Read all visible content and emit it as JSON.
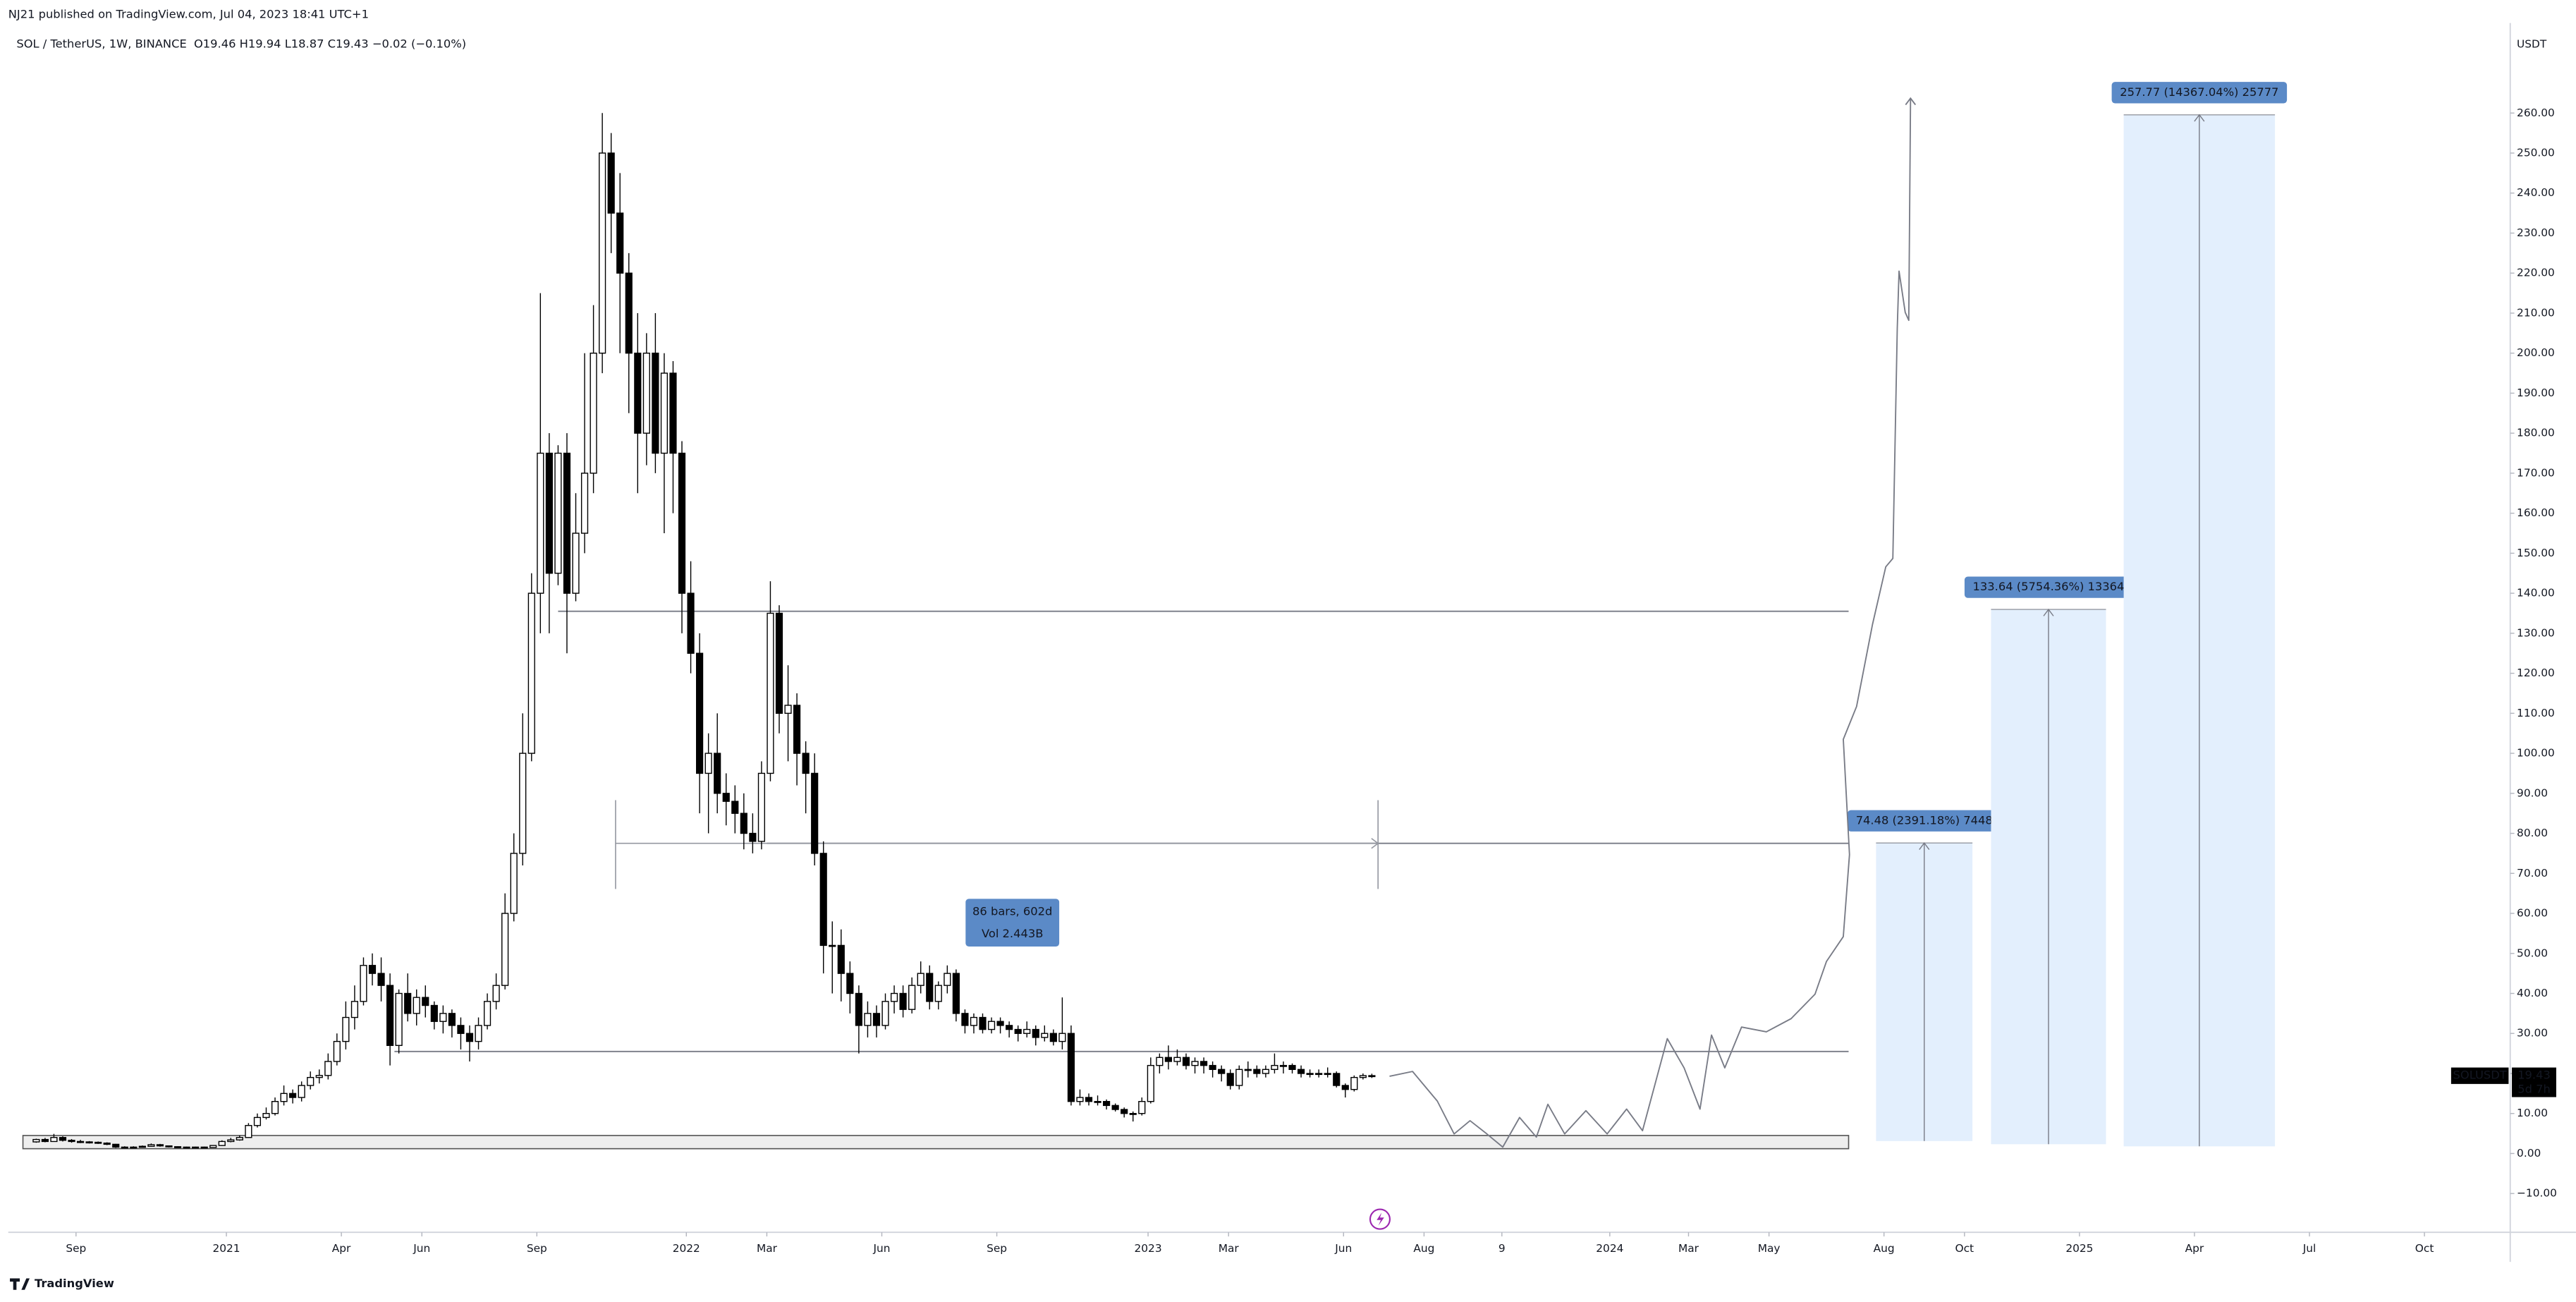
{
  "chart_data": {
    "type": "candlestick",
    "publisher": "NJ21 published on TradingView.com, Jul 04, 2023 18:41 UTC+1",
    "title": "SOL / TetherUS, 1W, BINANCE",
    "legend_values": "O19.46 H19.94 L18.87 C19.43 −0.02 (−0.10%)",
    "y_unit": "USDT",
    "symbol_tag": "SOLUSDT",
    "last_price_label": "19.43",
    "countdown": "5d 7h",
    "brand": "TradingView",
    "up_color": "#ffffff",
    "down_color": "#000000",
    "open": [
      2.9,
      3.5,
      3.0,
      4.0,
      3.3,
      3.0,
      2.9,
      2.8,
      2.6,
      2.3,
      1.6,
      1.5,
      1.6,
      1.8,
      2.2,
      1.9,
      1.7,
      1.6,
      1.5,
      1.6,
      1.5,
      2.0,
      3.0,
      3.4,
      4.0,
      7.0,
      9.0,
      10,
      13,
      15,
      14,
      17,
      19,
      19.5,
      23,
      28,
      34,
      38,
      47,
      45,
      42,
      27,
      40,
      35,
      39,
      37,
      33,
      35,
      32,
      30,
      28,
      32,
      38,
      42,
      60,
      75,
      100,
      140,
      175,
      145,
      175,
      140,
      155,
      170,
      200,
      250,
      235,
      220,
      200,
      180,
      200,
      175,
      195,
      175,
      140,
      125,
      95,
      100,
      90,
      88,
      85,
      80,
      78,
      95,
      135,
      110,
      112,
      100,
      95,
      75,
      52,
      52,
      45,
      40,
      32,
      35,
      32,
      38,
      40,
      36,
      42,
      45,
      38,
      42,
      45,
      35,
      32,
      34,
      31,
      33,
      32,
      31,
      30,
      31,
      29,
      30,
      28,
      30,
      13,
      14,
      13,
      13,
      12,
      11,
      10,
      10,
      13,
      22,
      24,
      23,
      24,
      22,
      23,
      22,
      21,
      20,
      17,
      21,
      21,
      20,
      21,
      22,
      22,
      21,
      20,
      20,
      20,
      20,
      17,
      16,
      19,
      19.46
    ],
    "high": [
      3.7,
      3.9,
      4.9,
      4.3,
      3.6,
      3.4,
      3.1,
      3.0,
      2.8,
      2.4,
      1.8,
      1.8,
      2.0,
      2.5,
      2.4,
      2.0,
      1.8,
      1.7,
      1.7,
      1.7,
      2.1,
      3.3,
      3.9,
      4.5,
      7.6,
      10,
      11.5,
      14,
      17,
      16,
      18,
      20.5,
      21,
      25,
      30,
      38,
      42,
      49,
      50,
      49,
      45,
      41,
      45,
      41,
      42,
      38,
      37,
      36,
      34,
      32,
      34,
      40,
      45,
      65,
      80,
      110,
      145,
      215,
      180,
      177,
      180,
      165,
      200,
      212,
      260,
      255,
      245,
      225,
      210,
      205,
      210,
      200,
      198,
      178,
      148,
      130,
      105,
      110,
      95,
      92,
      90,
      85,
      98,
      143,
      137,
      122,
      115,
      103,
      100,
      78,
      58,
      56,
      48,
      42,
      38,
      37,
      40,
      42,
      42,
      44,
      48,
      47,
      43,
      47,
      46,
      36,
      35,
      35,
      34,
      34,
      33,
      32,
      33,
      32,
      32,
      31,
      39,
      32,
      16,
      15,
      14.5,
      13.5,
      12.5,
      11.5,
      10.5,
      14,
      24,
      25,
      27,
      26,
      25,
      24,
      24,
      23,
      22,
      21,
      22,
      23,
      22,
      22,
      25,
      23,
      22.5,
      22,
      21,
      21,
      21.5,
      20.5,
      17.5,
      19.5,
      20,
      19.94
    ],
    "low": [
      2.7,
      2.8,
      2.9,
      3.0,
      2.7,
      2.6,
      2.5,
      2.4,
      2.1,
      1.4,
      1.3,
      1.4,
      1.5,
      1.7,
      1.7,
      1.5,
      1.4,
      1.4,
      1.4,
      1.4,
      1.4,
      1.9,
      2.8,
      3.2,
      3.9,
      6.5,
      8.5,
      9.5,
      12,
      12.5,
      13,
      16,
      17.5,
      18.5,
      22,
      26,
      31,
      37,
      42,
      38,
      22,
      25,
      33,
      32,
      34,
      31,
      30,
      29,
      26,
      23,
      26,
      31,
      36,
      41,
      58,
      72,
      98,
      130,
      130,
      142,
      125,
      138,
      150,
      165,
      195,
      225,
      200,
      185,
      165,
      172,
      170,
      155,
      160,
      130,
      120,
      85,
      80,
      85,
      82,
      80,
      76,
      75,
      76,
      93,
      105,
      98,
      92,
      85,
      72,
      45,
      40,
      38,
      35,
      25,
      29,
      29,
      31,
      35,
      34,
      35,
      40,
      36,
      36,
      40,
      33,
      30,
      30,
      30,
      30,
      30,
      29,
      28,
      29,
      27,
      28,
      27,
      26,
      12,
      12,
      12,
      12,
      11,
      10.5,
      9,
      8,
      9.5,
      12.5,
      20,
      21,
      22,
      21,
      20,
      20,
      19,
      18,
      16,
      16,
      19,
      19,
      19,
      20,
      20,
      20,
      19,
      19,
      19,
      19,
      16.5,
      14,
      15.5,
      18.5,
      18.87
    ],
    "close": [
      3.5,
      3.0,
      4.0,
      3.3,
      3.0,
      2.9,
      2.8,
      2.6,
      2.3,
      1.6,
      1.5,
      1.6,
      1.8,
      2.2,
      1.9,
      1.7,
      1.6,
      1.5,
      1.6,
      1.5,
      2.0,
      3.0,
      3.4,
      4.0,
      7.0,
      9.0,
      10,
      13,
      15,
      14,
      17,
      19,
      19.5,
      23,
      28,
      34,
      38,
      47,
      45,
      42,
      27,
      40,
      35,
      39,
      37,
      33,
      35,
      32,
      30,
      28,
      32,
      38,
      42,
      60,
      75,
      100,
      140,
      175,
      145,
      175,
      140,
      155,
      170,
      200,
      250,
      235,
      220,
      200,
      180,
      200,
      175,
      195,
      175,
      140,
      125,
      95,
      100,
      90,
      88,
      85,
      80,
      78,
      95,
      135,
      110,
      112,
      100,
      95,
      75,
      52,
      52,
      45,
      40,
      32,
      35,
      32,
      38,
      40,
      36,
      42,
      45,
      38,
      42,
      45,
      35,
      32,
      34,
      31,
      33,
      32,
      31,
      30,
      31,
      29,
      30,
      28,
      30,
      13,
      14,
      13,
      13,
      12,
      11,
      10,
      10,
      13,
      22,
      24,
      23,
      24,
      22,
      23,
      22,
      21,
      20,
      17,
      21,
      21,
      20,
      21,
      22,
      22,
      21,
      20,
      20,
      20,
      20,
      17,
      16,
      19,
      19.46,
      19.43
    ],
    "xlim": [
      -3.16,
      279.7
    ],
    "xticks": [
      {
        "value": 4.5,
        "label": "Sep"
      },
      {
        "value": 21.5,
        "label": "2021"
      },
      {
        "value": 34.5,
        "label": "Apr"
      },
      {
        "value": 43.6,
        "label": "Jun"
      },
      {
        "value": 56.6,
        "label": "Sep"
      },
      {
        "value": 73.5,
        "label": "2022"
      },
      {
        "value": 82.6,
        "label": "Mar"
      },
      {
        "value": 95.6,
        "label": "Jun"
      },
      {
        "value": 108.6,
        "label": "Sep"
      },
      {
        "value": 125.7,
        "label": "2023"
      },
      {
        "value": 134.8,
        "label": "Mar"
      },
      {
        "value": 147.8,
        "label": "Jun"
      },
      {
        "value": 156.9,
        "label": "Aug"
      },
      {
        "value": 165.7,
        "label": "9"
      },
      {
        "value": 177.9,
        "label": "2024"
      },
      {
        "value": 186.8,
        "label": "Mar"
      },
      {
        "value": 195.9,
        "label": "May"
      },
      {
        "value": 208.9,
        "label": "Aug"
      },
      {
        "value": 218.0,
        "label": "Oct"
      },
      {
        "value": 231.0,
        "label": "2025"
      },
      {
        "value": 244.0,
        "label": "Apr"
      },
      {
        "value": 257.0,
        "label": "Jul"
      },
      {
        "value": 270.0,
        "label": "Oct"
      }
    ],
    "ylim": [
      -19.7,
      282.5
    ],
    "yticks": [
      {
        "value": -10,
        "label": "−10.00"
      },
      {
        "value": 0,
        "label": "0.00"
      },
      {
        "value": 10,
        "label": "10.00"
      },
      {
        "value": 20,
        "label": "20.00"
      },
      {
        "value": 30,
        "label": "30.00"
      },
      {
        "value": 40,
        "label": "40.00"
      },
      {
        "value": 50,
        "label": "50.00"
      },
      {
        "value": 60,
        "label": "60.00"
      },
      {
        "value": 70,
        "label": "70.00"
      },
      {
        "value": 80,
        "label": "80.00"
      },
      {
        "value": 90,
        "label": "90.00"
      },
      {
        "value": 100,
        "label": "100.00"
      },
      {
        "value": 110,
        "label": "110.00"
      },
      {
        "value": 120,
        "label": "120.00"
      },
      {
        "value": 130,
        "label": "130.00"
      },
      {
        "value": 140,
        "label": "140.00"
      },
      {
        "value": 150,
        "label": "150.00"
      },
      {
        "value": 160,
        "label": "160.00"
      },
      {
        "value": 170,
        "label": "170.00"
      },
      {
        "value": 180,
        "label": "180.00"
      },
      {
        "value": 190,
        "label": "190.00"
      },
      {
        "value": 200,
        "label": "200.00"
      },
      {
        "value": 210,
        "label": "210.00"
      },
      {
        "value": 220,
        "label": "220.00"
      },
      {
        "value": 230,
        "label": "230.00"
      },
      {
        "value": 240,
        "label": "240.00"
      },
      {
        "value": 250,
        "label": "250.00"
      },
      {
        "value": 260,
        "label": "260.00"
      }
    ],
    "drawings": {
      "levels": [
        {
          "price": 135.5,
          "from": 59.0,
          "to": 204.9
        },
        {
          "price": 77.5,
          "from": 82.6,
          "to": 204.9
        },
        {
          "price": 25.5,
          "from": 40.5,
          "to": 204.9
        }
      ],
      "zone": {
        "low": 1.2,
        "high": 4.5,
        "from": -1.5,
        "to": 204.9
      },
      "date_range": {
        "price": 77.5,
        "low": 66.1,
        "high": 88.3,
        "from": 65.5,
        "to": 151.7,
        "labels": [
          "86 bars, 602d",
          "Vol 2.443B"
        ]
      },
      "positions": [
        {
          "label": "74.48 (2391.18%) 7448",
          "entry": 3.11,
          "target": 77.59,
          "x": [
            208.0,
            218.9
          ]
        },
        {
          "label": "133.64 (5754.36%) 13364",
          "entry": 2.32,
          "target": 135.96,
          "x": [
            221.0,
            234.0
          ]
        },
        {
          "label": "257.77 (14367.04%) 25777",
          "entry": 1.79,
          "target": 259.56,
          "x": [
            236.0,
            253.1
          ]
        }
      ],
      "projection": {
        "x": [
          153.0,
          155.6,
          158.4,
          160.3,
          162.1,
          164.0,
          165.8,
          167.7,
          169.6,
          170.9,
          172.8,
          175.2,
          177.6,
          179.8,
          181.6,
          184.4,
          186.3,
          188.1,
          189.4,
          190.9,
          192.8,
          195.6,
          198.4,
          201.1,
          202.4,
          204.3,
          205.0,
          204.3,
          205.8,
          207.6,
          209.1,
          209.9,
          210.4,
          210.6,
          211.3,
          211.7,
          211.9
        ],
        "y": [
          19.3,
          20.5,
          13.1,
          4.9,
          8.2,
          4.9,
          1.6,
          9.0,
          4.1,
          12.3,
          4.9,
          10.7,
          4.9,
          11.1,
          5.7,
          28.7,
          21.4,
          11.1,
          29.6,
          21.4,
          31.6,
          30.4,
          33.7,
          39.8,
          48.0,
          54.2,
          74.7,
          103.5,
          111.7,
          132.2,
          146.6,
          148.7,
          206.2,
          220.5,
          210.2,
          208.2,
          263.7
        ]
      }
    }
  }
}
